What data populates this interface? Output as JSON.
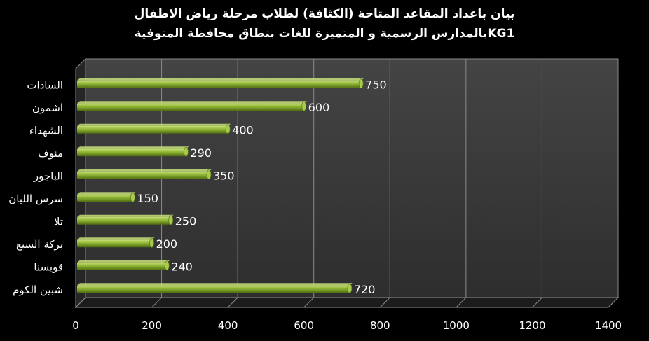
{
  "chart_data": {
    "type": "bar",
    "orientation": "horizontal",
    "title_lines": [
      "بيان باعداد المقاعد المتاحة (الكثافة) لطلاب مرحلة رياض الاطفال",
      "KG1بالمدارس الرسمية و المتميزة للغات بنطاق محافظة المنوفية"
    ],
    "categories": [
      "السادات",
      "اشمون",
      "الشهداء",
      "منوف",
      "الباجور",
      "سرس الليان",
      "تلا",
      "بركة السبع",
      "قويسنا",
      "شبين الكوم"
    ],
    "values": [
      750,
      600,
      400,
      290,
      350,
      150,
      250,
      200,
      240,
      720
    ],
    "xlim": [
      0,
      1400
    ],
    "xticks": [
      0,
      200,
      400,
      600,
      800,
      1000,
      1200,
      1400
    ],
    "grid": true,
    "legend": "none",
    "colors": {
      "background": "#000000",
      "plot_wall": "#3a3a3a",
      "bar_light": "#c8e07a",
      "bar_mid": "#8fb534",
      "bar_dark": "#4e6b12",
      "text": "#ffffff"
    }
  }
}
